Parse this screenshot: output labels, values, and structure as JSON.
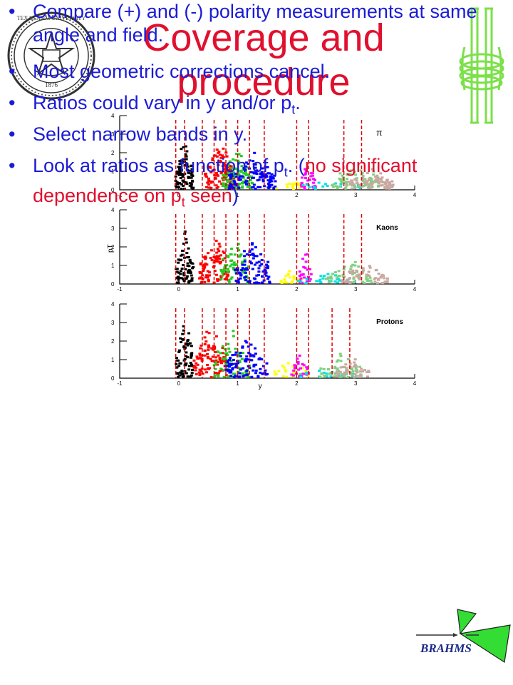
{
  "title_line1": "Coverage and",
  "title_line2": "procedure",
  "seal": {
    "year": "1876",
    "ring_text": "TEXAS A&M UNIVERSITY"
  },
  "logo_right": "cyclotron-logo-icon",
  "chart_data": [
    {
      "type": "scatter",
      "label": "π",
      "xlim": [
        -1,
        4
      ],
      "ylim": [
        0,
        4
      ],
      "xticks": [
        "-1",
        "0",
        "1",
        "2",
        "3",
        "4"
      ],
      "yticks": [
        "0",
        "1",
        "2",
        "3",
        "4"
      ],
      "cut_lines_x": [
        -0.05,
        0.1,
        0.4,
        0.6,
        0.8,
        1.0,
        1.2,
        1.45,
        2.0,
        2.2,
        2.8,
        3.1
      ],
      "colors": [
        "#000000",
        "#ff0000",
        "#22cc22",
        "#0000ff",
        "#ffff00",
        "#ff00ff",
        "#00e0e0",
        "#80d080",
        "#c8a8a0"
      ],
      "ylabel": "",
      "xlabel": ""
    },
    {
      "type": "scatter",
      "label": "Kaons",
      "xlim": [
        -1,
        4
      ],
      "ylim": [
        0,
        4
      ],
      "xticks": [
        "-1",
        "0",
        "1",
        "2",
        "3",
        "4"
      ],
      "yticks": [
        "0",
        "1",
        "2",
        "3",
        "4"
      ],
      "cut_lines_x": [
        -0.05,
        0.1,
        0.4,
        0.6,
        0.8,
        1.0,
        1.2,
        1.45,
        2.0,
        2.2,
        2.8,
        3.1
      ],
      "colors": [
        "#000000",
        "#ff0000",
        "#22cc22",
        "#0000ff",
        "#ffff00",
        "#ff00ff",
        "#00e0e0",
        "#80d080",
        "#c8a8a0"
      ],
      "ylabel": "pT",
      "xlabel": ""
    },
    {
      "type": "scatter",
      "label": "Protons",
      "xlim": [
        -1,
        4
      ],
      "ylim": [
        0,
        4
      ],
      "xticks": [
        "-1",
        "0",
        "1",
        "2",
        "3",
        "4"
      ],
      "yticks": [
        "0",
        "1",
        "2",
        "3",
        "4"
      ],
      "cut_lines_x": [
        -0.05,
        0.1,
        0.4,
        0.6,
        0.8,
        1.0,
        1.2,
        1.45,
        2.0,
        2.2,
        2.6,
        2.9
      ],
      "colors": [
        "#000000",
        "#ff0000",
        "#22cc22",
        "#0000ff",
        "#ffff00",
        "#ff00ff",
        "#00e0e0",
        "#80d080",
        "#c8a8a0"
      ],
      "ylabel": "",
      "xlabel": "y"
    }
  ],
  "bullets": [
    {
      "parts": [
        {
          "text": "Compare (+) and (-) polarity measurements at same angle and field.",
          "style": "normal"
        }
      ]
    },
    {
      "parts": [
        {
          "text": "Most geometric corrections cancel.",
          "style": "normal"
        }
      ]
    },
    {
      "parts": [
        {
          "text": "Ratios could vary in y and/or p",
          "style": "normal"
        },
        {
          "text": "t",
          "style": "sub"
        },
        {
          "text": ".",
          "style": "normal"
        }
      ]
    },
    {
      "parts": [
        {
          "text": "Select narrow bands in y.",
          "style": "normal"
        }
      ]
    },
    {
      "parts": [
        {
          "text": "Look at ratios as function of p",
          "style": "normal"
        },
        {
          "text": "t",
          "style": "sub"
        },
        {
          "text": ". (",
          "style": "normal"
        },
        {
          "text": "no significant dependence on p",
          "style": "red"
        },
        {
          "text": "t",
          "style": "redsub"
        },
        {
          "text": " seen",
          "style": "red"
        },
        {
          "text": ")",
          "style": "normal"
        }
      ]
    }
  ],
  "bullet_symbol": "•",
  "brahms_logo": {
    "text": "BRAHMS"
  },
  "colors": {
    "title": "#e0102e",
    "bullet_text": "#1b1bd6",
    "highlight": "#e0102e"
  }
}
